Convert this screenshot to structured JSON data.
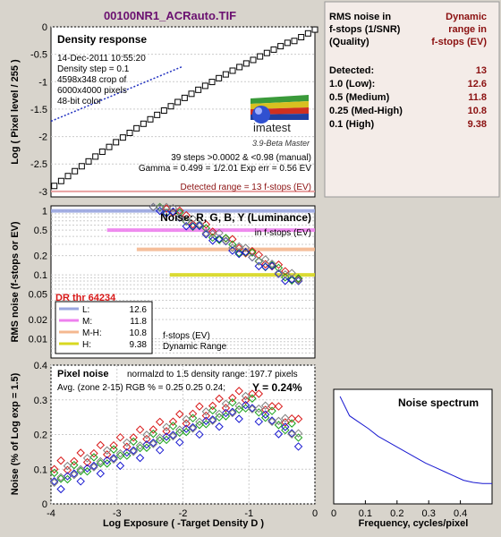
{
  "title": "00100NR1_ACRauto.TIF",
  "summary_panel": {
    "header_left": [
      "RMS noise in",
      "f-stops (1/SNR)",
      "(Quality)"
    ],
    "header_right": [
      "Dynamic",
      "range in",
      "f-stops (EV)"
    ],
    "rows": [
      {
        "label": "Detected:",
        "value": "13"
      },
      {
        "label": "1.0   (Low):",
        "value": "12.6"
      },
      {
        "label": "0.5   (Medium)",
        "value": "11.8"
      },
      {
        "label": "0.25 (Med-High)",
        "value": "10.8"
      },
      {
        "label": "0.1   (High)",
        "value": "9.38"
      }
    ]
  },
  "density_panel": {
    "heading": "Density response",
    "info": [
      "14-Dec-2011 10:55:20",
      "Density step = 0.1",
      "4598x348 crop of",
      "6000x4000 pixels",
      "48-bit color"
    ],
    "logo_text": "imatest",
    "version": "3.9-Beta  Master",
    "stats": [
      "39 steps >0.0002 & <0.98 (manual)",
      "Gamma = 0.499 = 1/2.01  Exp err = 0.56 EV"
    ],
    "detected": "Detected range = 13 f-stops (EV)",
    "ylabel": "Log ( Pixel level / 255 )"
  },
  "noise_panel": {
    "heading": "Noise: R, G, B, Y (Luminance)",
    "subheading": "in f-stops (EV)",
    "dr_label": "DR thr 64234",
    "ylabel": "RMS noise (f-stops or EV)",
    "legend": [
      {
        "key": "L:",
        "value": "12.6",
        "color": "#9aa6e0"
      },
      {
        "key": "M:",
        "value": "11.8",
        "color": "#ee80ee"
      },
      {
        "key": "M-H:",
        "value": "10.8",
        "color": "#f4b890"
      },
      {
        "key": "H:",
        "value": "9.38",
        "color": "#d8d820"
      }
    ],
    "legend_note": [
      "f-stops (EV)",
      "Dynamic Range"
    ]
  },
  "pixel_panel": {
    "heading": "Pixel noise",
    "normalized": "normalzd to 1.5 density range: 197.7 pixels",
    "avg": "Avg. (zone 2-15) RGB % = 0.25  0.25  0.24;",
    "y_value": "Y = 0.24%",
    "ylabel": "Noise (% of Log exp = 1.5)",
    "xlabel": "Log Exposure ( -Target Density D )"
  },
  "spectrum_panel": {
    "heading": "Noise spectrum",
    "xlabel": "Frequency, cycles/pixel"
  },
  "colors": {
    "red": "#d81818",
    "green": "#18a018",
    "blue": "#1818d0",
    "gray": "#808080"
  },
  "chart_data": [
    {
      "type": "scatter",
      "name": "density",
      "xlim": [
        -4,
        0
      ],
      "ylim": [
        -3.1,
        0
      ],
      "xticks": [
        -4,
        -3,
        -2,
        -1,
        0
      ],
      "yticks": [
        0,
        -0.5,
        -1,
        -1.5,
        -2,
        -2.5,
        -3
      ],
      "ytick_labels": [
        "0",
        "-0.5",
        "-1",
        "-1.5",
        "-2",
        "-2.5",
        "-3"
      ],
      "points_start": [
        -3.95,
        -2.9
      ],
      "points_end": [
        0,
        -0.05
      ],
      "point_count": 39,
      "fit_line": [
        [
          -4,
          -1.72
        ],
        [
          -2.0,
          -0.72
        ]
      ],
      "detected_line_y": -3.0
    },
    {
      "type": "scatter",
      "name": "rms-noise",
      "scale": "log",
      "xlim": [
        -4,
        0
      ],
      "ylim": [
        0.005,
        1.2
      ],
      "yticks": [
        1,
        0.5,
        0.2,
        0.1,
        0.05,
        0.02,
        0.01
      ],
      "ytick_labels": [
        "1",
        "0.5",
        "0.2",
        "0.1",
        "0.05",
        "0.02",
        "0.01"
      ],
      "thresholds": [
        {
          "y": 1.0,
          "color": "#9aa6e0"
        },
        {
          "y": 0.5,
          "color": "#ee80ee"
        },
        {
          "y": 0.25,
          "color": "#f4b890"
        },
        {
          "y": 0.1,
          "color": "#d8d820"
        }
      ],
      "series": [
        {
          "name": "R",
          "color": "#d81818"
        },
        {
          "name": "G",
          "color": "#18a018"
        },
        {
          "name": "B",
          "color": "#1818d0"
        },
        {
          "name": "Y",
          "color": "#808080"
        }
      ]
    },
    {
      "type": "scatter",
      "name": "pixel-noise",
      "xlim": [
        -4,
        0
      ],
      "ylim": [
        0,
        0.4
      ],
      "xticks": [
        -4,
        -3,
        -2,
        -1,
        0
      ],
      "yticks": [
        0,
        0.1,
        0.2,
        0.3,
        0.4
      ],
      "ytick_labels": [
        "0",
        "0.1",
        "0.2",
        "0.3",
        "0.4"
      ],
      "series": [
        {
          "name": "R",
          "color": "#d81818"
        },
        {
          "name": "G",
          "color": "#18a018"
        },
        {
          "name": "B",
          "color": "#1818d0"
        },
        {
          "name": "Y",
          "color": "#808080"
        }
      ]
    },
    {
      "type": "line",
      "name": "noise-spectrum",
      "xlim": [
        0,
        0.5
      ],
      "ylim": [
        0,
        1
      ],
      "xticks": [
        0,
        0.1,
        0.2,
        0.3,
        0.4
      ],
      "xtick_labels": [
        "0",
        "0.1",
        "0.2",
        "0.3",
        "0.4"
      ],
      "x": [
        0.02,
        0.05,
        0.08,
        0.11,
        0.14,
        0.17,
        0.2,
        0.23,
        0.26,
        0.29,
        0.32,
        0.35,
        0.38,
        0.41,
        0.44,
        0.47,
        0.5
      ],
      "y": [
        1.0,
        0.82,
        0.76,
        0.7,
        0.63,
        0.58,
        0.53,
        0.48,
        0.43,
        0.38,
        0.34,
        0.3,
        0.26,
        0.22,
        0.2,
        0.19,
        0.19
      ]
    }
  ]
}
